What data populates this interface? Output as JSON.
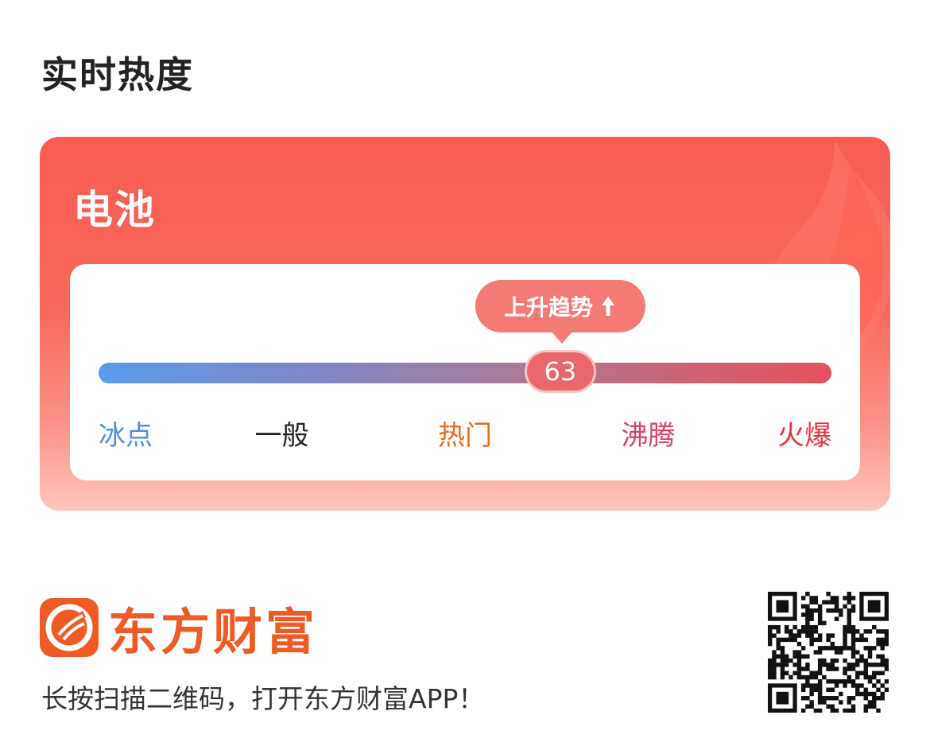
{
  "section": {
    "title": "实时热度"
  },
  "heat_card": {
    "stock_name": "电池",
    "trend_label": "上升趋势",
    "score": "63",
    "score_value": 63,
    "score_max": 100,
    "levels": [
      {
        "label": "冰点",
        "color": "#4a8fe0"
      },
      {
        "label": "一般",
        "color": "#222222"
      },
      {
        "label": "热门",
        "color": "#f06a1c"
      },
      {
        "label": "沸腾",
        "color": "#d9416a"
      },
      {
        "label": "火爆",
        "color": "#e8323a"
      }
    ]
  },
  "footer": {
    "brand_name": "东方财富",
    "brand_color": "#f05a24",
    "scan_tip": "长按扫描二维码，打开东方财富APP！"
  },
  "icons": {
    "trend": "arrow-up-icon",
    "brand": "eastmoney-logo-icon",
    "qr": "qr-code"
  }
}
